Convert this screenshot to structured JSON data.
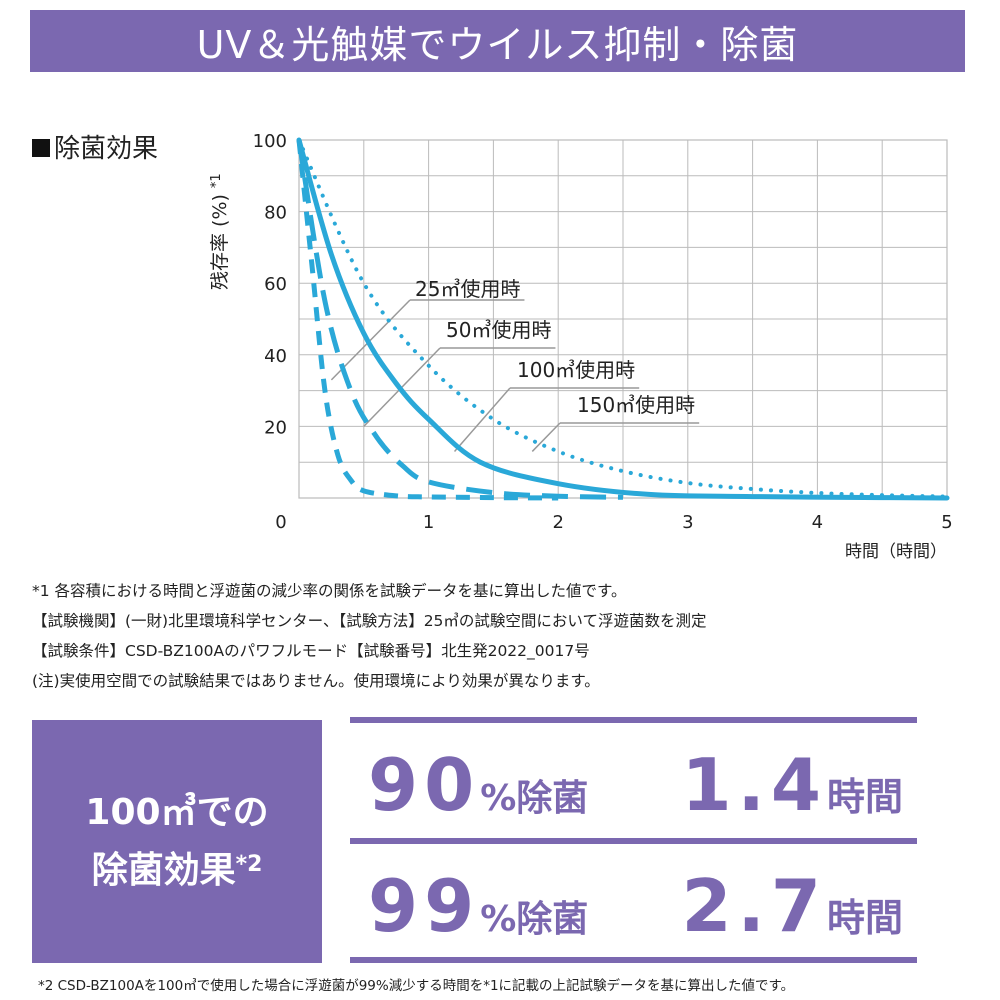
{
  "banner": {
    "title": "UV＆光触媒でウイルス抑制・除菌"
  },
  "section": {
    "label": "除菌効果"
  },
  "chart_data": {
    "type": "line",
    "ylabel": "残存率 (%)",
    "ylabel_note": "*1",
    "xlabel": "時間（時間）",
    "xlim": [
      0,
      5
    ],
    "ylim": [
      0,
      100
    ],
    "x_ticks": [
      "0",
      "1",
      "2",
      "3",
      "4",
      "5"
    ],
    "y_ticks": [
      "20",
      "40",
      "60",
      "80",
      "100"
    ],
    "grid": true,
    "series": [
      {
        "name": "25㎥使用時",
        "style": "dashed-short",
        "color": "#2aa8d8",
        "x": [
          0,
          0.1,
          0.2,
          0.3,
          0.4,
          0.5,
          0.75,
          1.0,
          1.5,
          2.0
        ],
        "y": [
          100,
          65,
          30,
          12,
          5,
          2,
          0.6,
          0.3,
          0.1,
          0
        ]
      },
      {
        "name": "50㎥使用時",
        "style": "dashed-long",
        "color": "#2aa8d8",
        "x": [
          0,
          0.2,
          0.4,
          0.6,
          0.8,
          1.0,
          1.5,
          2.0,
          2.5
        ],
        "y": [
          100,
          55,
          30,
          17,
          9,
          4.5,
          1.5,
          0.5,
          0.2
        ]
      },
      {
        "name": "100㎥使用時",
        "style": "solid",
        "color": "#2aa8d8",
        "x": [
          0,
          0.25,
          0.5,
          0.75,
          1.0,
          1.4,
          2.0,
          2.7,
          3.5,
          4.5,
          5.0
        ],
        "y": [
          100,
          68,
          46,
          32,
          22,
          10,
          4,
          1,
          0.4,
          0.1,
          0
        ]
      },
      {
        "name": "150㎥使用時",
        "style": "dotted",
        "color": "#2aa8d8",
        "x": [
          0,
          0.5,
          1.0,
          1.5,
          2.0,
          2.5,
          3.0,
          3.5,
          4.0,
          4.5,
          5.0
        ],
        "y": [
          100,
          60,
          37,
          22,
          13,
          7.5,
          4.2,
          2.5,
          1.4,
          0.8,
          0.4
        ]
      }
    ]
  },
  "notes": [
    "*1 各容積における時間と浮遊菌の減少率の関係を試験データを基に算出した値です。",
    "【試験機関】(一財)北里環境科学センター、【試験方法】25㎥の試験空間において浮遊菌数を測定",
    "【試験条件】CSD-BZ100Aのパワフルモード【試験番号】北生発2022_0017号",
    "(注)実使用空間での試験結果ではありません。使用環境により効果が異なります。"
  ],
  "effect_box": {
    "line1": "100㎥での",
    "line2": "除菌効果",
    "sup": "*2"
  },
  "stats": [
    {
      "pct": "90",
      "pct_unit": "%除菌",
      "time": "1.4",
      "time_unit": "時間"
    },
    {
      "pct": "99",
      "pct_unit": "%除菌",
      "time": "2.7",
      "time_unit": "時間"
    }
  ],
  "footnote2": "*2 CSD-BZ100Aを100㎥で使用した場合に浮遊菌が99%減少する時間を*1に記載の上記試験データを基に算出した値です。",
  "colors": {
    "accent": "#7b68b0",
    "curve": "#2aa8d8",
    "grid": "#bbbbbb"
  }
}
